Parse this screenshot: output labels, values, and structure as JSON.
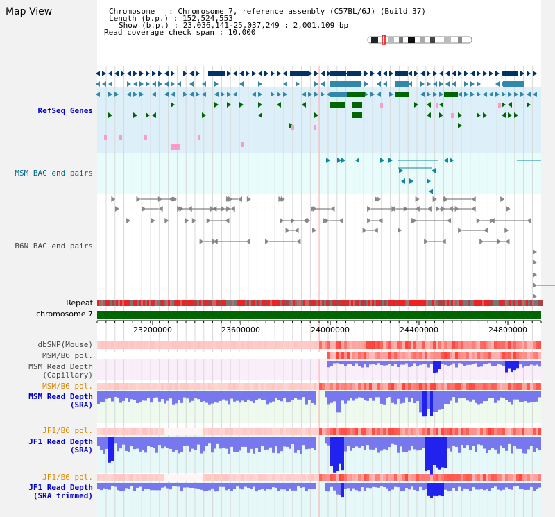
{
  "page": {
    "title": "Map View"
  },
  "header": {
    "chromosome_line": "Chromosome   : Chromosome 7, reference assembly (C57BL/6J) (Build 37)",
    "length_line": "Length (b.p.) : 152,524,553",
    "show_line": "Show (b.p.) : 23,036,141-25,037,249 : 2,001,109 bp",
    "coverage_line": "Read coverage check span : 10,000"
  },
  "tracks": {
    "refseq": "RefSeq Genes",
    "msm_bac": "MSM BAC end pairs",
    "b6n_bac": "B6N BAC end pairs",
    "repeat": "Repeat",
    "chromosome": "chromosome 7",
    "dbsnp": "dbSNP(Mouse)",
    "msm_b6_pol": "MSM/B6 pol.",
    "msm_depth_cap_1": "MSM Read Depth",
    "msm_depth_cap_2": "(Capillary)",
    "msm_b6_pol_2": "MSM/B6 pol.",
    "msm_depth_sra_1": "MSM Read Depth",
    "msm_depth_sra_2": "(SRA)",
    "jf1_b6_pol": "JF1/B6 pol.",
    "jf1_depth_sra_1": "JF1 Read Depth",
    "jf1_depth_sra_2": "(SRA)",
    "jf1_b6_pol_2": "JF1/B6 pol.",
    "jf1_depth_trim_1": "JF1 Read Depth",
    "jf1_depth_trim_2": "(SRA trimmed)"
  },
  "axis": {
    "ticks": [
      "23200000",
      "23600000",
      "24000000",
      "24400000",
      "24800000"
    ]
  },
  "colors": {
    "label_blue": "#0000cc",
    "label_teal": "#006688",
    "label_orange": "#dd8800",
    "gene_dark": "#003366",
    "gene_mid": "#3388aa",
    "gene_green": "#006600",
    "gene_pink": "#ff99cc",
    "bac_teal": "#11889a",
    "chrom_green": "#006600",
    "depth_blue": "#3333ee"
  }
}
